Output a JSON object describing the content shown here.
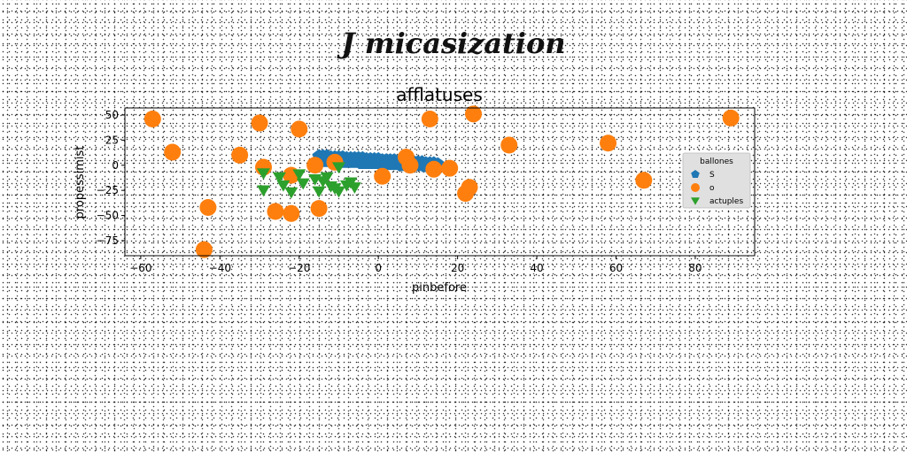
{
  "figure_title": "J micasization",
  "chart_data": {
    "type": "scatter",
    "title": "afflatuses",
    "xlabel": "pinbefore",
    "ylabel": "propessimist",
    "xlim": [
      -64,
      95
    ],
    "ylim": [
      -90,
      57
    ],
    "xticks": [
      -60,
      -40,
      -20,
      0,
      20,
      40,
      60,
      80
    ],
    "yticks": [
      50,
      25,
      0,
      -25,
      -50,
      -75
    ],
    "xtick_labels": [
      "−60",
      "−40",
      "−20",
      "0",
      "20",
      "40",
      "60",
      "80"
    ],
    "ytick_labels": [
      "50",
      "25",
      "0",
      "−25",
      "−50",
      "−75"
    ],
    "grid": false,
    "legend": {
      "title": "ballones",
      "position": "right"
    },
    "series": [
      {
        "name": "S",
        "marker": "pentagon",
        "color": "#1f77b4",
        "x": [
          -15,
          -14,
          -13,
          -12,
          -11,
          -10,
          -9,
          -8,
          -7,
          -6,
          -5,
          -4,
          -3,
          -2,
          -1,
          0,
          1,
          2,
          3,
          4,
          5,
          6,
          7,
          8,
          9,
          10,
          11,
          12,
          13,
          14,
          15,
          -14,
          -12,
          -10,
          -8,
          -6,
          -4,
          -2,
          0,
          2,
          4,
          6,
          8,
          10,
          12,
          14
        ],
        "y": [
          9,
          9,
          9,
          8,
          8,
          8,
          8,
          7,
          7,
          7,
          7,
          7,
          6,
          6,
          6,
          6,
          5,
          5,
          5,
          5,
          4,
          4,
          4,
          4,
          3,
          3,
          3,
          2,
          2,
          2,
          1,
          4,
          4,
          3,
          3,
          3,
          2,
          2,
          2,
          1,
          1,
          0,
          0,
          0,
          -1,
          -1
        ]
      },
      {
        "name": "o",
        "marker": "circle",
        "color": "#ff7f0e",
        "x": [
          -57,
          -52,
          -43,
          -44,
          -35,
          -30,
          -29,
          -26,
          -22,
          -22,
          -20,
          -16,
          -15,
          -11,
          1,
          7,
          8,
          13,
          14,
          18,
          22,
          23,
          24,
          33,
          58,
          67,
          89
        ],
        "y": [
          46,
          13,
          -42,
          -84,
          10,
          42,
          -2,
          -46,
          -48,
          -10,
          36,
          0,
          -43,
          3,
          -11,
          8,
          0,
          46,
          -4,
          -3,
          -28,
          -22,
          51,
          20,
          22,
          -15,
          47
        ]
      },
      {
        "name": "actuples",
        "marker": "triangle-down",
        "color": "#2ca02c",
        "x": [
          -29,
          -29,
          -25,
          -24,
          -22,
          -20,
          -19,
          -16,
          -15,
          -14,
          -13,
          -12,
          -11,
          -10,
          -10,
          -8,
          -7,
          -6
        ],
        "y": [
          -8,
          -25,
          -12,
          -20,
          -27,
          -9,
          -18,
          -14,
          -26,
          -16,
          -12,
          -21,
          -23,
          -2,
          -26,
          -20,
          -17,
          -22
        ]
      }
    ]
  }
}
